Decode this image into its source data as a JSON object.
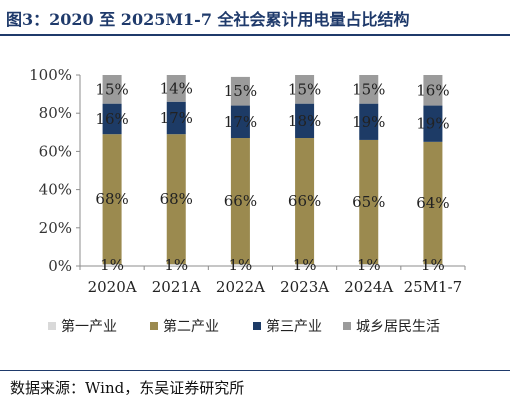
{
  "title": "图3：2020 至 2025M1-7 全社会累计用电量占比结构",
  "source": "数据来源：Wind，东吴证券研究所",
  "chart_data": {
    "type": "bar",
    "stacked": true,
    "categories": [
      "2020A",
      "2021A",
      "2022A",
      "2023A",
      "2024A",
      "25M1-7"
    ],
    "series": [
      {
        "name": "第一产业",
        "color": "#d9d9d9",
        "values": [
          1,
          1,
          1,
          1,
          1,
          1
        ],
        "labels": [
          "1%",
          "1%",
          "1%",
          "1%",
          "1%",
          "1%"
        ]
      },
      {
        "name": "第二产业",
        "color": "#9b8a4f",
        "values": [
          68,
          68,
          66,
          66,
          65,
          64
        ],
        "labels": [
          "68%",
          "68%",
          "66%",
          "66%",
          "65%",
          "64%"
        ]
      },
      {
        "name": "第三产业",
        "color": "#1d3b66",
        "values": [
          16,
          17,
          17,
          18,
          19,
          19
        ],
        "labels": [
          "16%",
          "17%",
          "17%",
          "18%",
          "19%",
          "19%"
        ]
      },
      {
        "name": "城乡居民生活",
        "color": "#9b9b9b",
        "values": [
          15,
          14,
          15,
          15,
          15,
          16
        ],
        "labels": [
          "15%",
          "14%",
          "15%",
          "15%",
          "15%",
          "16%"
        ]
      }
    ],
    "y_ticks": [
      "0%",
      "20%",
      "40%",
      "60%",
      "80%",
      "100%"
    ],
    "ylim": [
      0,
      100
    ],
    "grid": false,
    "legend": "bottom"
  }
}
